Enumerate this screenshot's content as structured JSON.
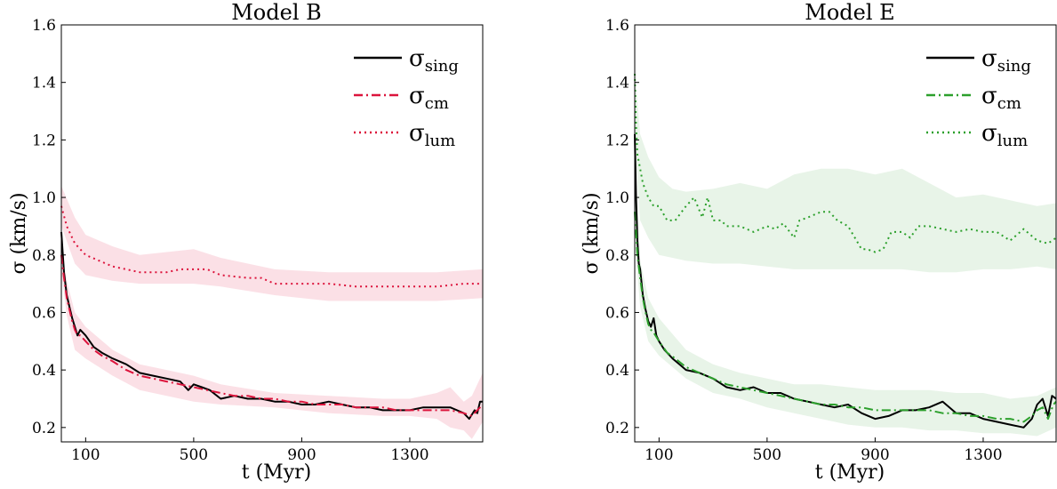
{
  "chart_data": [
    {
      "type": "line",
      "title": "Model B",
      "xlabel": "t (Myr)",
      "ylabel": "σ (km/s)",
      "xlim": [
        10,
        1570
      ],
      "ylim": [
        0.15,
        1.6
      ],
      "xticks": [
        100,
        500,
        900,
        1300
      ],
      "yticks": [
        0.2,
        0.4,
        0.6,
        0.8,
        1.0,
        1.2,
        1.4,
        1.6
      ],
      "ytick_labels": [
        "0.2",
        "0.4",
        "0.6",
        "0.8",
        "1.0",
        "1.2",
        "1.4",
        "1.6"
      ],
      "legend_position": "top-right",
      "grid": false,
      "series": [
        {
          "name": "σsing",
          "name_base": "σ",
          "name_sub": "sing",
          "color": "#000000",
          "dash": "solid",
          "x": [
            10,
            20,
            30,
            40,
            50,
            60,
            70,
            80,
            100,
            130,
            160,
            200,
            250,
            300,
            350,
            400,
            450,
            480,
            500,
            530,
            560,
            600,
            650,
            700,
            750,
            800,
            850,
            900,
            950,
            1000,
            1050,
            1100,
            1150,
            1200,
            1250,
            1300,
            1350,
            1400,
            1450,
            1500,
            1520,
            1540,
            1550,
            1560,
            1570
          ],
          "y": [
            0.88,
            0.74,
            0.66,
            0.62,
            0.58,
            0.55,
            0.52,
            0.54,
            0.52,
            0.48,
            0.46,
            0.44,
            0.42,
            0.39,
            0.38,
            0.37,
            0.36,
            0.33,
            0.35,
            0.34,
            0.33,
            0.3,
            0.31,
            0.3,
            0.3,
            0.29,
            0.29,
            0.28,
            0.28,
            0.29,
            0.28,
            0.27,
            0.27,
            0.26,
            0.26,
            0.26,
            0.27,
            0.27,
            0.27,
            0.25,
            0.23,
            0.26,
            0.25,
            0.29,
            0.29
          ]
        },
        {
          "name": "σcm",
          "name_base": "σ",
          "name_sub": "cm",
          "color": "#dc143c",
          "dash": "dashdot",
          "x": [
            10,
            20,
            30,
            40,
            50,
            60,
            70,
            80,
            100,
            130,
            160,
            200,
            250,
            300,
            350,
            400,
            450,
            500,
            550,
            600,
            650,
            700,
            750,
            800,
            850,
            900,
            950,
            1000,
            1050,
            1100,
            1150,
            1200,
            1250,
            1300,
            1350,
            1400,
            1450,
            1500,
            1530,
            1560,
            1570
          ],
          "y": [
            0.8,
            0.72,
            0.65,
            0.61,
            0.57,
            0.54,
            0.52,
            0.52,
            0.5,
            0.47,
            0.45,
            0.43,
            0.4,
            0.38,
            0.37,
            0.36,
            0.35,
            0.34,
            0.33,
            0.32,
            0.31,
            0.31,
            0.3,
            0.3,
            0.29,
            0.29,
            0.28,
            0.28,
            0.28,
            0.27,
            0.27,
            0.27,
            0.26,
            0.26,
            0.26,
            0.26,
            0.26,
            0.25,
            0.24,
            0.27,
            0.28
          ]
        },
        {
          "name": "σlum",
          "name_base": "σ",
          "name_sub": "lum",
          "color": "#dc143c",
          "dash": "dotted",
          "x": [
            10,
            30,
            60,
            100,
            150,
            200,
            250,
            300,
            400,
            450,
            500,
            550,
            600,
            700,
            750,
            800,
            850,
            900,
            1000,
            1100,
            1200,
            1300,
            1400,
            1500,
            1570
          ],
          "y": [
            0.97,
            0.9,
            0.84,
            0.8,
            0.78,
            0.76,
            0.75,
            0.74,
            0.74,
            0.75,
            0.75,
            0.75,
            0.73,
            0.72,
            0.72,
            0.7,
            0.7,
            0.7,
            0.7,
            0.69,
            0.69,
            0.69,
            0.69,
            0.7,
            0.7
          ]
        }
      ],
      "bands": [
        {
          "color": "#f4a6b6",
          "x": [
            10,
            60,
            100,
            200,
            300,
            400,
            500,
            600,
            800,
            1000,
            1200,
            1400,
            1570
          ],
          "low": [
            0.9,
            0.77,
            0.73,
            0.71,
            0.7,
            0.7,
            0.7,
            0.69,
            0.66,
            0.64,
            0.64,
            0.64,
            0.65
          ],
          "high": [
            1.04,
            0.93,
            0.87,
            0.83,
            0.8,
            0.81,
            0.82,
            0.79,
            0.75,
            0.74,
            0.74,
            0.74,
            0.75
          ]
        },
        {
          "color": "#f4a6b6",
          "x": [
            10,
            30,
            60,
            100,
            200,
            300,
            400,
            500,
            600,
            800,
            1000,
            1200,
            1300,
            1400,
            1450,
            1500,
            1530,
            1570
          ],
          "low": [
            0.74,
            0.59,
            0.47,
            0.44,
            0.38,
            0.33,
            0.31,
            0.29,
            0.28,
            0.27,
            0.25,
            0.24,
            0.24,
            0.23,
            0.2,
            0.19,
            0.16,
            0.22
          ],
          "high": [
            0.82,
            0.71,
            0.6,
            0.55,
            0.47,
            0.42,
            0.4,
            0.38,
            0.35,
            0.32,
            0.31,
            0.3,
            0.3,
            0.32,
            0.34,
            0.29,
            0.31,
            0.39
          ]
        }
      ]
    },
    {
      "type": "line",
      "title": "Model E",
      "xlabel": "t (Myr)",
      "ylabel": "σ (km/s)",
      "xlim": [
        10,
        1570
      ],
      "ylim": [
        0.15,
        1.6
      ],
      "xticks": [
        100,
        500,
        900,
        1300
      ],
      "yticks": [
        0.2,
        0.4,
        0.6,
        0.8,
        1.0,
        1.2,
        1.4,
        1.6
      ],
      "ytick_labels": [
        "0.2",
        "0.4",
        "0.6",
        "0.8",
        "1.0",
        "1.2",
        "1.4",
        "1.6"
      ],
      "legend_position": "top-right",
      "grid": false,
      "series": [
        {
          "name": "σsing",
          "name_base": "σ",
          "name_sub": "sing",
          "color": "#000000",
          "dash": "solid",
          "x": [
            10,
            15,
            20,
            25,
            30,
            40,
            50,
            60,
            70,
            80,
            90,
            100,
            120,
            150,
            200,
            250,
            300,
            350,
            400,
            450,
            500,
            550,
            600,
            650,
            700,
            750,
            800,
            850,
            900,
            950,
            1000,
            1050,
            1100,
            1150,
            1200,
            1250,
            1300,
            1350,
            1400,
            1450,
            1480,
            1500,
            1520,
            1540,
            1555,
            1570
          ],
          "y": [
            1.22,
            1.0,
            0.85,
            0.77,
            0.75,
            0.66,
            0.61,
            0.57,
            0.55,
            0.58,
            0.52,
            0.5,
            0.47,
            0.44,
            0.4,
            0.39,
            0.37,
            0.34,
            0.33,
            0.34,
            0.32,
            0.32,
            0.3,
            0.29,
            0.28,
            0.27,
            0.28,
            0.25,
            0.23,
            0.24,
            0.26,
            0.26,
            0.27,
            0.29,
            0.25,
            0.25,
            0.23,
            0.22,
            0.21,
            0.2,
            0.23,
            0.28,
            0.3,
            0.24,
            0.31,
            0.3
          ]
        },
        {
          "name": "σcm",
          "name_base": "σ",
          "name_sub": "cm",
          "color": "#2ca02c",
          "dash": "dashdot",
          "x": [
            10,
            20,
            30,
            40,
            50,
            60,
            70,
            80,
            100,
            130,
            160,
            200,
            250,
            300,
            350,
            400,
            450,
            500,
            550,
            600,
            650,
            700,
            750,
            800,
            850,
            900,
            950,
            1000,
            1050,
            1100,
            1150,
            1200,
            1250,
            1300,
            1350,
            1400,
            1450,
            1480,
            1500,
            1520,
            1540,
            1560,
            1570
          ],
          "y": [
            0.95,
            0.8,
            0.72,
            0.65,
            0.6,
            0.56,
            0.54,
            0.53,
            0.5,
            0.46,
            0.44,
            0.41,
            0.39,
            0.37,
            0.35,
            0.34,
            0.33,
            0.32,
            0.31,
            0.3,
            0.29,
            0.28,
            0.28,
            0.27,
            0.27,
            0.26,
            0.26,
            0.26,
            0.26,
            0.26,
            0.25,
            0.25,
            0.24,
            0.24,
            0.23,
            0.23,
            0.22,
            0.24,
            0.26,
            0.27,
            0.23,
            0.28,
            0.29
          ]
        },
        {
          "name": "σlum",
          "name_base": "σ",
          "name_sub": "lum",
          "color": "#2ca02c",
          "dash": "dotted",
          "x": [
            10,
            15,
            20,
            30,
            40,
            60,
            80,
            100,
            130,
            160,
            200,
            230,
            260,
            280,
            300,
            330,
            350,
            400,
            450,
            500,
            530,
            560,
            600,
            620,
            650,
            700,
            730,
            760,
            800,
            850,
            870,
            900,
            930,
            960,
            1000,
            1030,
            1060,
            1100,
            1150,
            1200,
            1250,
            1300,
            1350,
            1400,
            1450,
            1500,
            1540,
            1570
          ],
          "y": [
            1.43,
            1.25,
            1.15,
            1.1,
            1.05,
            1.0,
            0.97,
            0.97,
            0.92,
            0.92,
            0.97,
            1.0,
            0.93,
            1.0,
            0.92,
            0.92,
            0.9,
            0.9,
            0.88,
            0.9,
            0.89,
            0.91,
            0.86,
            0.92,
            0.93,
            0.95,
            0.95,
            0.92,
            0.9,
            0.82,
            0.82,
            0.81,
            0.82,
            0.88,
            0.88,
            0.86,
            0.9,
            0.9,
            0.89,
            0.88,
            0.89,
            0.88,
            0.88,
            0.85,
            0.89,
            0.85,
            0.84,
            0.86
          ]
        }
      ],
      "bands": [
        {
          "color": "#d6ebd6",
          "x": [
            10,
            30,
            60,
            100,
            150,
            200,
            300,
            400,
            500,
            600,
            700,
            800,
            900,
            1000,
            1100,
            1200,
            1300,
            1400,
            1500,
            1570
          ],
          "low": [
            1.18,
            0.92,
            0.86,
            0.8,
            0.79,
            0.78,
            0.77,
            0.77,
            0.76,
            0.75,
            0.75,
            0.75,
            0.75,
            0.75,
            0.74,
            0.74,
            0.75,
            0.75,
            0.76,
            0.75
          ],
          "high": [
            1.45,
            1.22,
            1.14,
            1.07,
            1.03,
            1.02,
            1.03,
            1.05,
            1.03,
            1.08,
            1.1,
            1.1,
            1.08,
            1.1,
            1.05,
            1.0,
            1.01,
            0.99,
            0.97,
            0.98
          ]
        },
        {
          "color": "#d6ebd6",
          "x": [
            10,
            30,
            60,
            100,
            200,
            300,
            400,
            500,
            600,
            700,
            800,
            900,
            1000,
            1100,
            1200,
            1300,
            1400,
            1500,
            1570
          ],
          "low": [
            0.85,
            0.62,
            0.5,
            0.45,
            0.37,
            0.32,
            0.3,
            0.27,
            0.25,
            0.23,
            0.21,
            0.2,
            0.2,
            0.19,
            0.19,
            0.18,
            0.18,
            0.17,
            0.2
          ],
          "high": [
            1.2,
            0.78,
            0.65,
            0.58,
            0.47,
            0.42,
            0.39,
            0.37,
            0.35,
            0.35,
            0.34,
            0.33,
            0.33,
            0.33,
            0.32,
            0.32,
            0.3,
            0.31,
            0.34
          ]
        }
      ]
    }
  ]
}
